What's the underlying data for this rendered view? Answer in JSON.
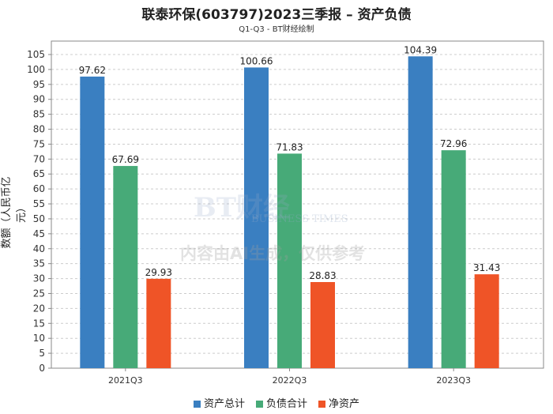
{
  "chart_data": {
    "type": "bar",
    "title": "联泰环保(603797)2023三季报 – 资产负债",
    "subtitle": "Q1-Q3 - BT财经绘制",
    "xlabel": "",
    "ylabel": "数额（人民币亿元）",
    "categories": [
      "2021Q3",
      "2022Q3",
      "2023Q3"
    ],
    "series": [
      {
        "name": "资产总计",
        "color": "#3a7fc1",
        "values": [
          97.62,
          100.66,
          104.39
        ]
      },
      {
        "name": "负债合计",
        "color": "#47aa78",
        "values": [
          67.69,
          71.83,
          72.96
        ]
      },
      {
        "name": "净资产",
        "color": "#ef5427",
        "values": [
          29.93,
          28.83,
          31.43
        ]
      }
    ],
    "ylim": [
      0,
      109.5
    ],
    "yticks": [
      0,
      5,
      10,
      15,
      20,
      25,
      30,
      35,
      40,
      45,
      50,
      55,
      60,
      65,
      70,
      75,
      80,
      85,
      90,
      95,
      100,
      105
    ],
    "grid": true,
    "legend": "bottom-center"
  },
  "watermark": {
    "brand": "BT财经",
    "brand_en": "BUSINESS TIMES",
    "notice": "内容由AI生成，仅供参考"
  }
}
